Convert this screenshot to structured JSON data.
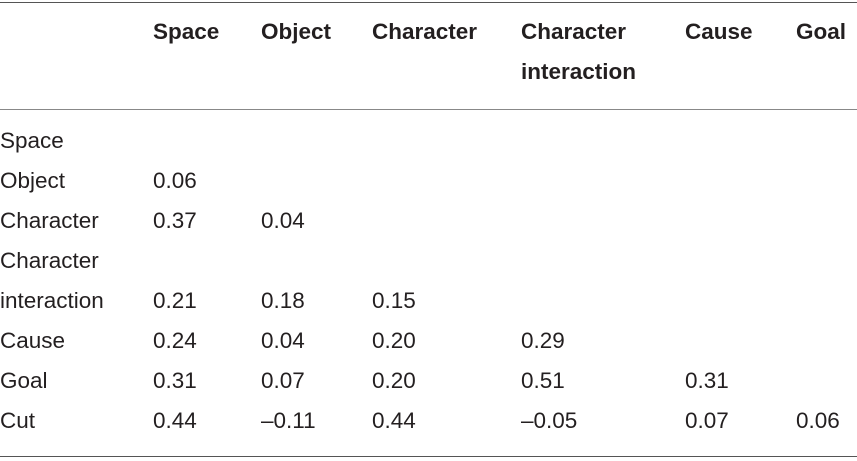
{
  "table": {
    "columns": [
      "Space",
      "Object",
      "Character",
      "Character interaction",
      "Cause",
      "Goal"
    ],
    "rows": [
      {
        "label": "Space",
        "values": []
      },
      {
        "label": "Object",
        "values": [
          "0.06"
        ]
      },
      {
        "label": "Character",
        "values": [
          "0.37",
          "0.04"
        ]
      },
      {
        "label": "Character interaction",
        "values": [
          "0.21",
          "0.18",
          "0.15"
        ]
      },
      {
        "label": "Cause",
        "values": [
          "0.24",
          "0.04",
          "0.20",
          "0.29"
        ]
      },
      {
        "label": "Goal",
        "values": [
          "0.31",
          "0.07",
          "0.20",
          "0.51",
          "0.31"
        ]
      },
      {
        "label": "Cut",
        "values": [
          "0.44",
          "–0.11",
          "0.44",
          "–0.05",
          "0.07",
          "0.06"
        ]
      }
    ]
  }
}
